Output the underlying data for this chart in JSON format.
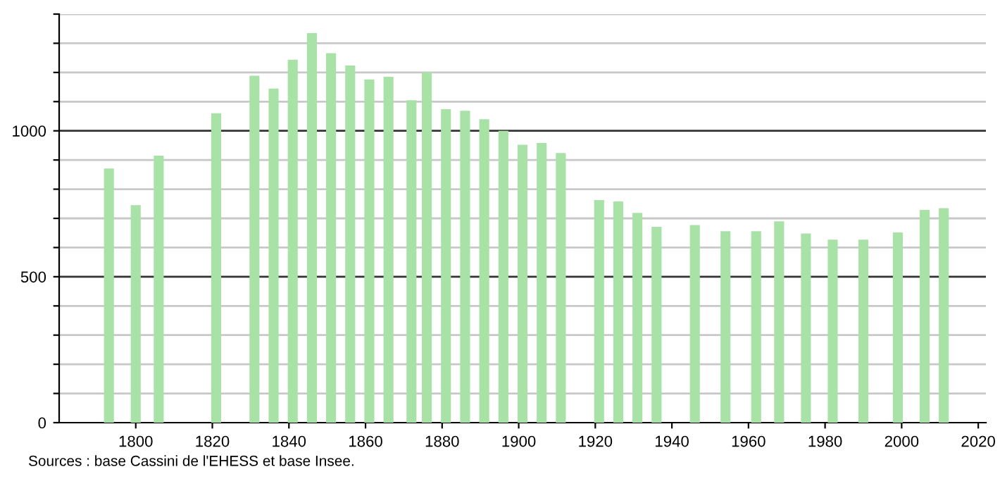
{
  "chart_data": {
    "type": "bar",
    "color": "#a8e2a6",
    "x": [
      1793,
      1800,
      1806,
      1821,
      1831,
      1836,
      1841,
      1846,
      1851,
      1856,
      1861,
      1866,
      1872,
      1876,
      1881,
      1886,
      1891,
      1896,
      1901,
      1906,
      1911,
      1921,
      1926,
      1931,
      1936,
      1946,
      1954,
      1962,
      1968,
      1975,
      1982,
      1990,
      1999,
      2006,
      2011
    ],
    "values": [
      871,
      745,
      915,
      1060,
      1189,
      1145,
      1244,
      1335,
      1266,
      1224,
      1176,
      1185,
      1105,
      1200,
      1074,
      1069,
      1040,
      1000,
      952,
      958,
      924,
      763,
      758,
      719,
      671,
      677,
      656,
      656,
      690,
      648,
      627,
      627,
      652,
      729,
      735
    ],
    "xlim": [
      1780,
      2022
    ],
    "xticks": [
      1800,
      1820,
      1840,
      1860,
      1880,
      1900,
      1920,
      1940,
      1960,
      1980,
      2000,
      2020
    ],
    "ylim": [
      0,
      1400
    ],
    "yticks": [
      0,
      {
        "value": 100,
        "label": null
      },
      {
        "value": 200,
        "label": null
      },
      {
        "value": 300,
        "label": null
      },
      {
        "value": 400,
        "label": null
      },
      500,
      {
        "value": 600,
        "label": null
      },
      {
        "value": 700,
        "label": null
      },
      {
        "value": 800,
        "label": null
      },
      {
        "value": 900,
        "label": null
      },
      1000,
      {
        "value": 1100,
        "label": null
      },
      {
        "value": 1200,
        "label": null
      },
      {
        "value": 1300,
        "label": null
      },
      {
        "value": 1400,
        "label": null
      }
    ],
    "grid": "y",
    "annotations": [
      "Sources : base Cassini de l'EHESS et base Insee."
    ]
  }
}
